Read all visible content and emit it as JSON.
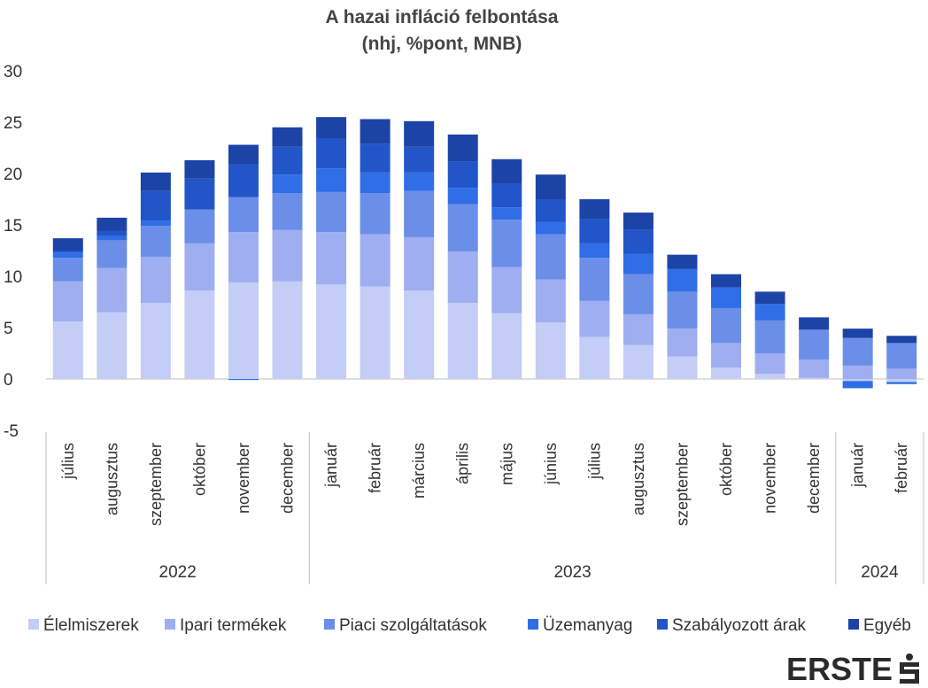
{
  "chart_data": {
    "type": "bar",
    "stacked": true,
    "title": "A hazai infláció felbontása",
    "subtitle": "(nhj, %pont, MNB)",
    "ylim": [
      -5,
      30
    ],
    "yticks": [
      -5,
      0,
      5,
      10,
      15,
      20,
      25,
      30
    ],
    "categories": [
      "július",
      "augusztus",
      "szeptember",
      "október",
      "november",
      "december",
      "január",
      "február",
      "március",
      "április",
      "május",
      "június",
      "július",
      "augusztus",
      "szeptember",
      "október",
      "november",
      "december",
      "január",
      "február"
    ],
    "year_groups": [
      {
        "label": "2022",
        "count": 6
      },
      {
        "label": "2023",
        "count": 12
      },
      {
        "label": "2024",
        "count": 2
      }
    ],
    "legend_position": "bottom",
    "series": [
      {
        "name": "Élelmiszerek",
        "color": "#c3cdf6",
        "values": [
          5.6,
          6.5,
          7.4,
          8.6,
          9.4,
          9.5,
          9.2,
          9.0,
          8.6,
          7.4,
          6.4,
          5.5,
          4.1,
          3.3,
          2.2,
          1.1,
          0.5,
          0.1,
          -0.2,
          -0.3
        ]
      },
      {
        "name": "Ipari termékek",
        "color": "#9eaef0",
        "values": [
          3.9,
          4.3,
          4.5,
          4.6,
          4.9,
          5.0,
          5.1,
          5.1,
          5.2,
          5.0,
          4.5,
          4.2,
          3.5,
          3.0,
          2.7,
          2.4,
          2.0,
          1.8,
          1.3,
          1.0
        ]
      },
      {
        "name": "Piaci szolgáltatások",
        "color": "#6b8ee8",
        "values": [
          2.3,
          2.7,
          3.0,
          3.3,
          3.4,
          3.6,
          3.9,
          4.0,
          4.5,
          4.6,
          4.6,
          4.4,
          4.2,
          3.9,
          3.6,
          3.4,
          3.2,
          2.9,
          2.7,
          2.5
        ]
      },
      {
        "name": "Üzemanyag",
        "color": "#2f6ee6",
        "values": [
          0.5,
          0.4,
          0.5,
          0.0,
          -0.1,
          1.8,
          2.3,
          2.0,
          1.8,
          1.6,
          1.2,
          1.2,
          1.4,
          2.0,
          2.2,
          2.0,
          1.6,
          0.0,
          -0.7,
          -0.2
        ]
      },
      {
        "name": "Szabályozott árak",
        "color": "#2255c8",
        "values": [
          0.2,
          0.5,
          2.9,
          3.0,
          3.2,
          2.7,
          2.9,
          2.8,
          2.5,
          2.6,
          2.3,
          2.2,
          2.4,
          2.3,
          0.0,
          0.0,
          0.0,
          0.0,
          0.0,
          0.0
        ]
      },
      {
        "name": "Egyéb",
        "color": "#1c43a6",
        "values": [
          1.2,
          1.3,
          1.8,
          1.8,
          1.9,
          1.9,
          2.1,
          2.4,
          2.5,
          2.6,
          2.4,
          2.4,
          1.9,
          1.7,
          1.4,
          1.3,
          1.2,
          1.2,
          0.9,
          0.7
        ]
      }
    ]
  },
  "brand": {
    "logo_text": "ERSTE"
  }
}
